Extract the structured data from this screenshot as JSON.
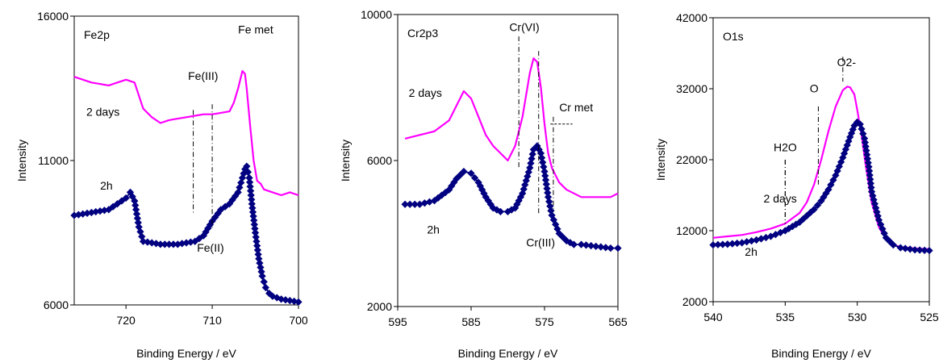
{
  "chart_data": [
    {
      "type": "line",
      "title": "",
      "panel_label": "Fe2p",
      "xlabel": "Binding Energy / eV",
      "ylabel": "Intensity",
      "xlim": [
        726,
        700
      ],
      "ylim": [
        6000,
        16000
      ],
      "x_ticks": [
        720,
        710,
        700
      ],
      "y_ticks": [
        6000,
        11000,
        16000
      ],
      "x_reversed": true,
      "grid": false,
      "series": [
        {
          "label": "2 days",
          "color": "#ff00ff",
          "marker": "none",
          "x": [
            726,
            724,
            722,
            721,
            720,
            719,
            718,
            717,
            716,
            715,
            714,
            713,
            712,
            711,
            710,
            709,
            708,
            707.5,
            707,
            706.5,
            706.2,
            706,
            705.6,
            705.2,
            704.8,
            704.4,
            704,
            703,
            702,
            701,
            700
          ],
          "y": [
            13900,
            13700,
            13600,
            13700,
            13800,
            13700,
            12800,
            12500,
            12300,
            12400,
            12450,
            12500,
            12550,
            12600,
            12600,
            12650,
            12700,
            13000,
            13500,
            14100,
            14000,
            13500,
            12200,
            11000,
            10300,
            10200,
            10000,
            9900,
            9800,
            9900,
            9800
          ]
        },
        {
          "label": "2h",
          "color": "#000080",
          "marker": "diamond",
          "x": [
            726,
            724,
            722,
            721,
            720,
            719.5,
            719,
            718.5,
            718,
            717,
            716,
            715,
            714,
            713,
            712,
            711,
            710,
            709,
            708,
            707,
            706.5,
            706.2,
            706,
            705.7,
            705.4,
            705,
            704.6,
            704.2,
            703.8,
            703.4,
            703,
            702,
            701,
            700
          ],
          "y": [
            9100,
            9200,
            9300,
            9500,
            9700,
            9900,
            9600,
            8700,
            8200,
            8150,
            8100,
            8100,
            8100,
            8150,
            8200,
            8400,
            8900,
            9300,
            9500,
            9900,
            10400,
            10700,
            10800,
            10400,
            9500,
            8500,
            7600,
            7000,
            6600,
            6400,
            6300,
            6200,
            6150,
            6100
          ]
        }
      ],
      "annotations": [
        "2 days",
        "2h",
        "Fe(III)",
        "Fe(II)",
        "Fe met"
      ]
    },
    {
      "type": "line",
      "title": "",
      "panel_label": "Cr2p3",
      "xlabel": "Binding Energy / eV",
      "ylabel": "Intensity",
      "xlim": [
        595,
        565
      ],
      "ylim": [
        2000,
        10000
      ],
      "x_ticks": [
        595,
        585,
        575,
        565
      ],
      "y_ticks": [
        2000,
        6000,
        10000
      ],
      "x_reversed": true,
      "grid": false,
      "series": [
        {
          "label": "2 days",
          "color": "#ff00ff",
          "marker": "none",
          "x": [
            594,
            592,
            590,
            588,
            587,
            586,
            585,
            584,
            583,
            582,
            581,
            580,
            579,
            578,
            577,
            576.5,
            576,
            575.5,
            575,
            574.5,
            574,
            573,
            572,
            571,
            570,
            568,
            566,
            565
          ],
          "y": [
            6600,
            6700,
            6800,
            7100,
            7500,
            7900,
            7700,
            7200,
            6700,
            6400,
            6200,
            6000,
            6400,
            7200,
            8400,
            8800,
            8700,
            8000,
            7000,
            6200,
            5800,
            5400,
            5200,
            5100,
            5000,
            5000,
            5000,
            5100
          ]
        },
        {
          "label": "2h",
          "color": "#000080",
          "marker": "diamond",
          "x": [
            594,
            592,
            590,
            588,
            587,
            586,
            585,
            584,
            583,
            582,
            581,
            580,
            579,
            578,
            577,
            576.5,
            576,
            575.5,
            575,
            574.5,
            574,
            573,
            572,
            571,
            570,
            568,
            566,
            565
          ],
          "y": [
            4800,
            4800,
            4900,
            5200,
            5500,
            5700,
            5650,
            5400,
            5000,
            4700,
            4600,
            4600,
            4700,
            5100,
            5800,
            6300,
            6400,
            6200,
            5700,
            5000,
            4500,
            4000,
            3800,
            3700,
            3700,
            3650,
            3600,
            3600
          ]
        }
      ],
      "annotations": [
        "2 days",
        "2h",
        "Cr(VI)",
        "Cr(III)",
        "Cr met"
      ]
    },
    {
      "type": "line",
      "title": "",
      "panel_label": "O1s",
      "xlabel": "Binding Energy / eV",
      "ylabel": "Intensity",
      "xlim": [
        540,
        525
      ],
      "ylim": [
        2000,
        42000
      ],
      "x_ticks": [
        540,
        535,
        530,
        525
      ],
      "y_ticks": [
        2000,
        12000,
        22000,
        32000,
        42000
      ],
      "x_reversed": true,
      "grid": false,
      "series": [
        {
          "label": "2 days",
          "color": "#ff00ff",
          "marker": "none",
          "x": [
            540,
            539,
            538,
            537,
            536,
            535,
            534,
            533.5,
            533,
            532.5,
            532,
            531.5,
            531,
            530.7,
            530.5,
            530.2,
            530,
            529.7,
            529.4,
            529,
            528.5,
            528,
            527.5,
            527,
            526,
            525
          ],
          "y": [
            11000,
            11200,
            11400,
            11800,
            12300,
            13000,
            14500,
            16000,
            18500,
            22000,
            26000,
            29500,
            31800,
            32300,
            32200,
            31200,
            29000,
            25500,
            21000,
            16000,
            12500,
            10800,
            10000,
            9700,
            9500,
            9400
          ]
        },
        {
          "label": "2h",
          "color": "#000080",
          "marker": "diamond",
          "x": [
            540,
            539,
            538,
            537,
            536,
            535,
            534,
            533,
            532.5,
            532,
            531.5,
            531,
            530.5,
            530.2,
            530,
            529.8,
            529.5,
            529.2,
            529,
            528.5,
            528,
            527.5,
            527,
            526,
            525
          ],
          "y": [
            10000,
            10100,
            10300,
            10700,
            11200,
            12000,
            13200,
            15000,
            16200,
            17800,
            19800,
            22300,
            25200,
            26800,
            27300,
            27000,
            25000,
            21000,
            17500,
            13500,
            11000,
            10000,
            9600,
            9300,
            9200
          ]
        }
      ],
      "annotations": [
        "2 days",
        "2h",
        "H2O",
        "O",
        "O2-"
      ]
    }
  ]
}
